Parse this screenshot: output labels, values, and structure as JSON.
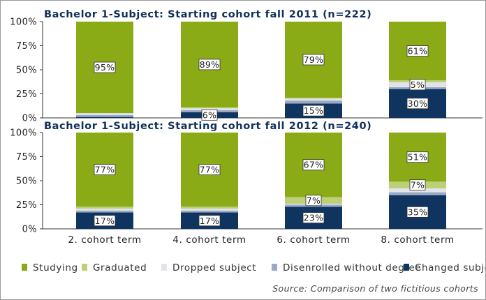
{
  "chart_data": [
    {
      "type": "bar",
      "stacked": true,
      "title": "Bachelor 1-Subject: Starting cohort fall 2011 (n=222)",
      "categories": [
        "2. cohort term",
        "4. cohort term",
        "6. cohort term",
        "8. cohort term"
      ],
      "ylim": [
        0,
        1
      ],
      "yticks": [
        "0%",
        "25%",
        "50%",
        "75%",
        "100%"
      ],
      "series": [
        {
          "name": "Changed subject",
          "values": [
            0.01,
            0.06,
            0.15,
            0.3
          ],
          "labels": [
            "",
            "6%",
            "15%",
            "30%"
          ]
        },
        {
          "name": "Disenrolled without degree",
          "values": [
            0.02,
            0.02,
            0.03,
            0.02
          ],
          "labels": [
            "",
            "",
            "",
            ""
          ]
        },
        {
          "name": "Dropped subject",
          "values": [
            0.02,
            0.02,
            0.02,
            0.05
          ],
          "labels": [
            "",
            "",
            "",
            "5%"
          ]
        },
        {
          "name": "Graduated",
          "values": [
            0.0,
            0.01,
            0.01,
            0.02
          ],
          "labels": [
            "",
            "",
            "",
            ""
          ]
        },
        {
          "name": "Studying",
          "values": [
            0.95,
            0.89,
            0.79,
            0.61
          ],
          "labels": [
            "95%",
            "89%",
            "79%",
            "61%"
          ]
        }
      ]
    },
    {
      "type": "bar",
      "stacked": true,
      "title": "Bachelor 1-Subject: Starting cohort fall 2012 (n=240)",
      "categories": [
        "2. cohort term",
        "4. cohort term",
        "6. cohort term",
        "8. cohort term"
      ],
      "ylim": [
        0,
        1
      ],
      "yticks": [
        "0%",
        "25%",
        "50%",
        "75%",
        "100%"
      ],
      "series": [
        {
          "name": "Changed subject",
          "values": [
            0.17,
            0.17,
            0.23,
            0.35
          ],
          "labels": [
            "17%",
            "17%",
            "23%",
            "35%"
          ]
        },
        {
          "name": "Disenrolled without degree",
          "values": [
            0.02,
            0.02,
            0.02,
            0.03
          ],
          "labels": [
            "",
            "",
            "",
            ""
          ]
        },
        {
          "name": "Dropped subject",
          "values": [
            0.02,
            0.02,
            0.01,
            0.04
          ],
          "labels": [
            "",
            "",
            "",
            ""
          ]
        },
        {
          "name": "Graduated",
          "values": [
            0.02,
            0.02,
            0.07,
            0.07
          ],
          "labels": [
            "",
            "",
            "7%",
            "7%"
          ]
        },
        {
          "name": "Studying",
          "values": [
            0.77,
            0.77,
            0.67,
            0.51
          ],
          "labels": [
            "77%",
            "77%",
            "67%",
            "51%"
          ]
        }
      ]
    }
  ],
  "legend": [
    {
      "name": "Studying",
      "color": "#8aab16"
    },
    {
      "name": "Graduated",
      "color": "#bcd07a"
    },
    {
      "name": "Dropped subject",
      "color": "#e3e3ea"
    },
    {
      "name": "Disenrolled without degree",
      "color": "#9aaac4"
    },
    {
      "name": "Changed subject",
      "color": "#0f3460"
    }
  ],
  "series_colors": {
    "Changed subject": "#0f3460",
    "Disenrolled without degree": "#9aaac4",
    "Dropped subject": "#e3e3ea",
    "Graduated": "#bcd07a",
    "Studying": "#8aab16"
  },
  "source": "Source: Comparison of two fictitious cohorts"
}
